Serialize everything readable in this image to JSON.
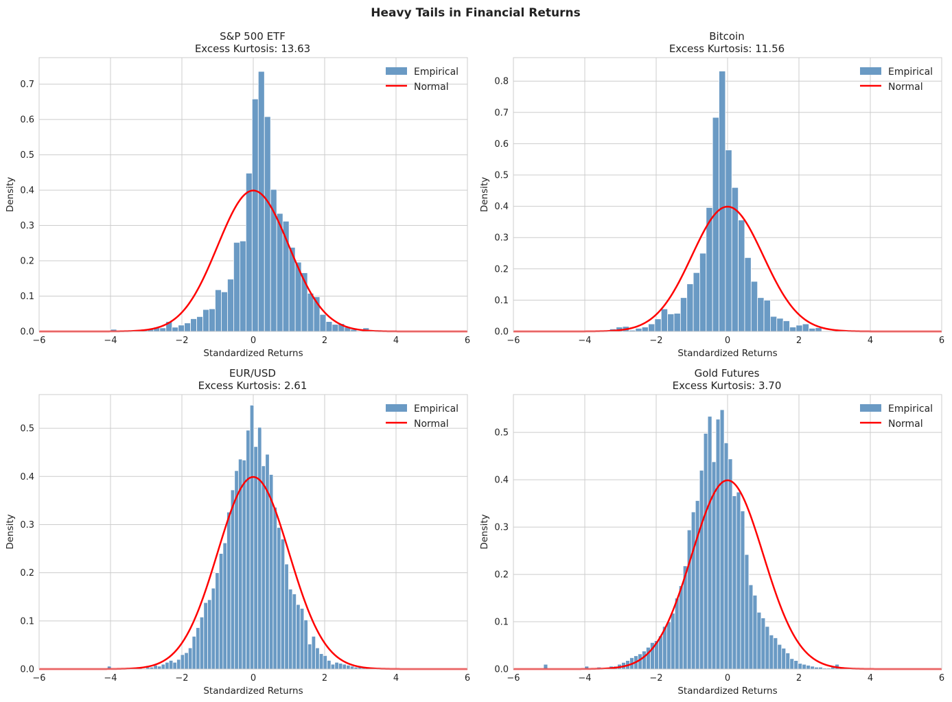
{
  "figure": {
    "title": "Heavy Tails in Financial Returns"
  },
  "colors": {
    "bar_fill": "#6a9ac4",
    "bar_edge": "#ffffff",
    "normal_line": "#ff0000",
    "grid": "#cccccc",
    "spine": "#cccccc"
  },
  "chart_data": [
    {
      "type": "bar",
      "title": "S&P 500 ETF",
      "subtitle": "Excess Kurtosis: 13.63",
      "xlabel": "Standardized Returns",
      "ylabel": "Density",
      "xlim": [
        -6,
        6
      ],
      "ylim": [
        0,
        0.775
      ],
      "xticks": [
        -6,
        -4,
        -2,
        0,
        2,
        4,
        6
      ],
      "yticks": [
        0.0,
        0.1,
        0.2,
        0.3,
        0.4,
        0.5,
        0.6,
        0.7
      ],
      "ytick_labels": [
        "0.0",
        "0.1",
        "0.2",
        "0.3",
        "0.4",
        "0.5",
        "0.6",
        "0.7"
      ],
      "legend": [
        "Empirical",
        "Normal"
      ],
      "legend_position": "top-right",
      "bins": {
        "start": -4.0,
        "width": 0.1725,
        "values": [
          0.006,
          0.0,
          0.0,
          0.0,
          0.0,
          0.004,
          0.008,
          0.012,
          0.01,
          0.028,
          0.012,
          0.018,
          0.024,
          0.036,
          0.042,
          0.062,
          0.064,
          0.118,
          0.112,
          0.148,
          0.252,
          0.256,
          0.448,
          0.658,
          0.736,
          0.608,
          0.402,
          0.334,
          0.312,
          0.238,
          0.196,
          0.166,
          0.108,
          0.098,
          0.048,
          0.028,
          0.02,
          0.022,
          0.012,
          0.006,
          0.0,
          0.01,
          0.0,
          0.004
        ]
      },
      "normal": {
        "mean": 0,
        "sd": 1
      }
    },
    {
      "type": "bar",
      "title": "Bitcoin",
      "subtitle": "Excess Kurtosis: 11.56",
      "xlabel": "Standardized Returns",
      "ylabel": "Density",
      "xlim": [
        -6,
        6
      ],
      "ylim": [
        0,
        0.875
      ],
      "xticks": [
        -6,
        -4,
        -2,
        0,
        2,
        4,
        6
      ],
      "yticks": [
        0.0,
        0.1,
        0.2,
        0.3,
        0.4,
        0.5,
        0.6,
        0.7,
        0.8
      ],
      "ytick_labels": [
        "0.0",
        "0.1",
        "0.2",
        "0.3",
        "0.4",
        "0.5",
        "0.6",
        "0.7",
        "0.8"
      ],
      "legend": [
        "Empirical",
        "Normal"
      ],
      "legend_position": "top-right",
      "bins": {
        "start": -3.3,
        "width": 0.18,
        "values": [
          0.008,
          0.014,
          0.016,
          0.004,
          0.01,
          0.014,
          0.024,
          0.04,
          0.072,
          0.056,
          0.058,
          0.108,
          0.152,
          0.188,
          0.25,
          0.396,
          0.684,
          0.832,
          0.58,
          0.46,
          0.356,
          0.236,
          0.16,
          0.108,
          0.1,
          0.048,
          0.042,
          0.034,
          0.014,
          0.02,
          0.024,
          0.01,
          0.012
        ]
      },
      "normal": {
        "mean": 0,
        "sd": 1
      }
    },
    {
      "type": "bar",
      "title": "EUR/USD",
      "subtitle": "Excess Kurtosis: 2.61",
      "xlabel": "Standardized Returns",
      "ylabel": "Density",
      "xlim": [
        -6,
        6
      ],
      "ylim": [
        0,
        0.57
      ],
      "xticks": [
        -6,
        -4,
        -2,
        0,
        2,
        4,
        6
      ],
      "yticks": [
        0.0,
        0.1,
        0.2,
        0.3,
        0.4,
        0.5
      ],
      "ytick_labels": [
        "0.0",
        "0.1",
        "0.2",
        "0.3",
        "0.4",
        "0.5"
      ],
      "legend": [
        "Empirical",
        "Normal"
      ],
      "legend_position": "top-right",
      "bins": {
        "start": -5.6,
        "width": 0.108,
        "values": [
          0.002,
          0.0,
          0.0,
          0.0,
          0.002,
          0.0,
          0.0,
          0.0,
          0.0,
          0.0,
          0.0,
          0.0,
          0.0,
          0.0,
          0.006,
          0.0,
          0.0,
          0.0,
          0.0,
          0.0,
          0.0,
          0.0,
          0.002,
          0.0,
          0.004,
          0.004,
          0.008,
          0.006,
          0.01,
          0.014,
          0.018,
          0.014,
          0.02,
          0.03,
          0.034,
          0.044,
          0.068,
          0.086,
          0.108,
          0.138,
          0.144,
          0.168,
          0.2,
          0.24,
          0.262,
          0.326,
          0.372,
          0.412,
          0.436,
          0.434,
          0.496,
          0.548,
          0.462,
          0.502,
          0.422,
          0.446,
          0.404,
          0.336,
          0.294,
          0.27,
          0.218,
          0.166,
          0.156,
          0.134,
          0.126,
          0.102,
          0.052,
          0.068,
          0.044,
          0.032,
          0.028,
          0.018,
          0.01,
          0.014,
          0.012,
          0.01,
          0.008,
          0.006,
          0.004,
          0.006,
          0.004,
          0.002
        ]
      },
      "normal": {
        "mean": 0,
        "sd": 1
      }
    },
    {
      "type": "bar",
      "title": "Gold Futures",
      "subtitle": "Excess Kurtosis: 3.70",
      "xlabel": "Standardized Returns",
      "ylabel": "Density",
      "xlim": [
        -6,
        6
      ],
      "ylim": [
        0,
        0.58
      ],
      "xticks": [
        -6,
        -4,
        -2,
        0,
        2,
        4,
        6
      ],
      "yticks": [
        0.0,
        0.1,
        0.2,
        0.3,
        0.4,
        0.5
      ],
      "ytick_labels": [
        "0.0",
        "0.1",
        "0.2",
        "0.3",
        "0.4",
        "0.5"
      ],
      "legend": [
        "Empirical",
        "Normal"
      ],
      "legend_position": "top-right",
      "bins": {
        "start": -5.5,
        "width": 0.115,
        "values": [
          0.002,
          0.0,
          0.0,
          0.01,
          0.0,
          0.0,
          0.0,
          0.0,
          0.0,
          0.0,
          0.0,
          0.0,
          0.0,
          0.006,
          0.0,
          0.0,
          0.004,
          0.0,
          0.0,
          0.006,
          0.006,
          0.01,
          0.014,
          0.018,
          0.024,
          0.028,
          0.032,
          0.038,
          0.046,
          0.056,
          0.06,
          0.07,
          0.09,
          0.1,
          0.118,
          0.15,
          0.176,
          0.218,
          0.294,
          0.332,
          0.356,
          0.42,
          0.498,
          0.534,
          0.438,
          0.528,
          0.548,
          0.478,
          0.444,
          0.366,
          0.374,
          0.334,
          0.242,
          0.178,
          0.156,
          0.12,
          0.108,
          0.09,
          0.072,
          0.066,
          0.052,
          0.044,
          0.034,
          0.022,
          0.018,
          0.012,
          0.01,
          0.008,
          0.006,
          0.004,
          0.004,
          0.002,
          0.002,
          0.004,
          0.01,
          0.002
        ]
      },
      "normal": {
        "mean": 0,
        "sd": 1
      }
    }
  ]
}
